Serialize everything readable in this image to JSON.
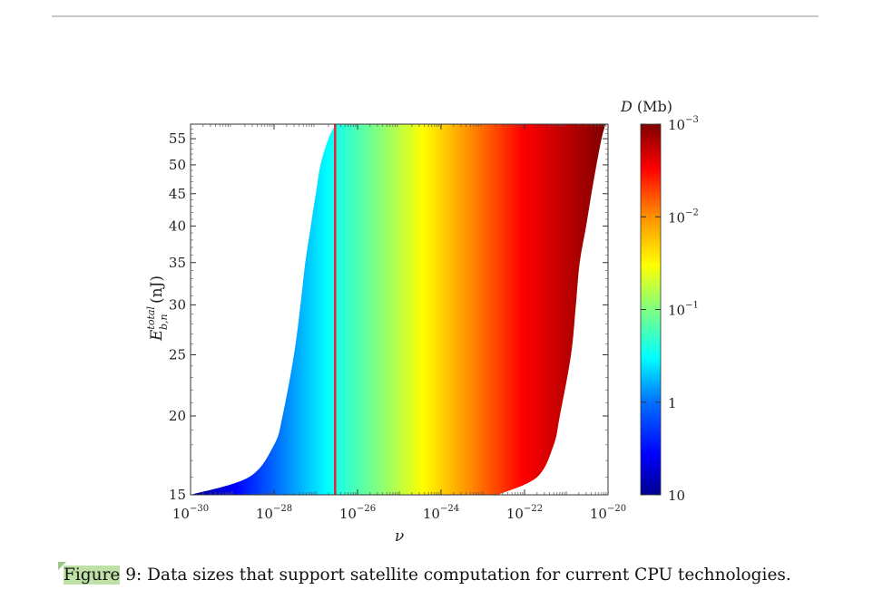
{
  "chart_data": {
    "type": "heatmap",
    "xlabel": "ν",
    "ylabel": "E_{b,n}^{total} (nJ)",
    "x_scale": "log",
    "y_scale": "log",
    "xlim": [
      1e-30,
      1e-20
    ],
    "ylim": [
      15,
      58
    ],
    "x_ticks": [
      {
        "base": "10",
        "exp": "−30"
      },
      {
        "base": "10",
        "exp": "−28"
      },
      {
        "base": "10",
        "exp": "−26"
      },
      {
        "base": "10",
        "exp": "−24"
      },
      {
        "base": "10",
        "exp": "−22"
      },
      {
        "base": "10",
        "exp": "−20"
      }
    ],
    "x_tick_values": [
      1e-30,
      1e-28,
      1e-26,
      1e-24,
      1e-22,
      1e-20
    ],
    "y_ticks": [
      "15",
      "20",
      "25",
      "30",
      "35",
      "40",
      "45",
      "50",
      "55"
    ],
    "y_tick_values": [
      15,
      20,
      25,
      30,
      35,
      40,
      45,
      50,
      55
    ],
    "region_left_boundary": [
      {
        "E": 15,
        "nu": 1e-30
      },
      {
        "E": 16,
        "nu": 2.5e-29
      },
      {
        "E": 18,
        "nu": 1e-28
      },
      {
        "E": 20,
        "nu": 1.6e-28
      },
      {
        "E": 25,
        "nu": 3e-28
      },
      {
        "E": 30,
        "nu": 4.3e-28
      },
      {
        "E": 35,
        "nu": 5.6e-28
      },
      {
        "E": 40,
        "nu": 7.6e-28
      },
      {
        "E": 45,
        "nu": 1e-27
      },
      {
        "E": 50,
        "nu": 1.3e-27
      },
      {
        "E": 55,
        "nu": 2e-27
      },
      {
        "E": 58,
        "nu": 3e-27
      }
    ],
    "region_right_boundary": [
      {
        "E": 15,
        "nu": 2.3e-23
      },
      {
        "E": 16,
        "nu": 2e-22
      },
      {
        "E": 18,
        "nu": 5e-22
      },
      {
        "E": 20,
        "nu": 7e-22
      },
      {
        "E": 25,
        "nu": 1.3e-21
      },
      {
        "E": 30,
        "nu": 1.7e-21
      },
      {
        "E": 35,
        "nu": 2.1e-21
      },
      {
        "E": 40,
        "nu": 3e-21
      },
      {
        "E": 45,
        "nu": 4e-21
      },
      {
        "E": 50,
        "nu": 5.3e-21
      },
      {
        "E": 55,
        "nu": 7e-21
      },
      {
        "E": 58,
        "nu": 8.7e-21
      }
    ],
    "reference_line": {
      "nu": 2.9e-27,
      "color": "#e8233b"
    },
    "colorbar": {
      "label_var": "D",
      "label_unit": "(Mb)",
      "scale": "log",
      "range": [
        0.001,
        10
      ],
      "ticks": [
        {
          "base": "10",
          "exp": "−3"
        },
        {
          "base": "10",
          "exp": "−2"
        },
        {
          "base": "10",
          "exp": "−1"
        },
        {
          "base": "1",
          "exp": ""
        },
        {
          "base": "10",
          "exp": ""
        }
      ],
      "colormap": "jet (reversed: blue = 10, dark red = 10^−3)"
    }
  },
  "caption": {
    "figure_label": "Figure",
    "text": " 9: Data sizes that support satellite computation for current CPU technologies."
  }
}
